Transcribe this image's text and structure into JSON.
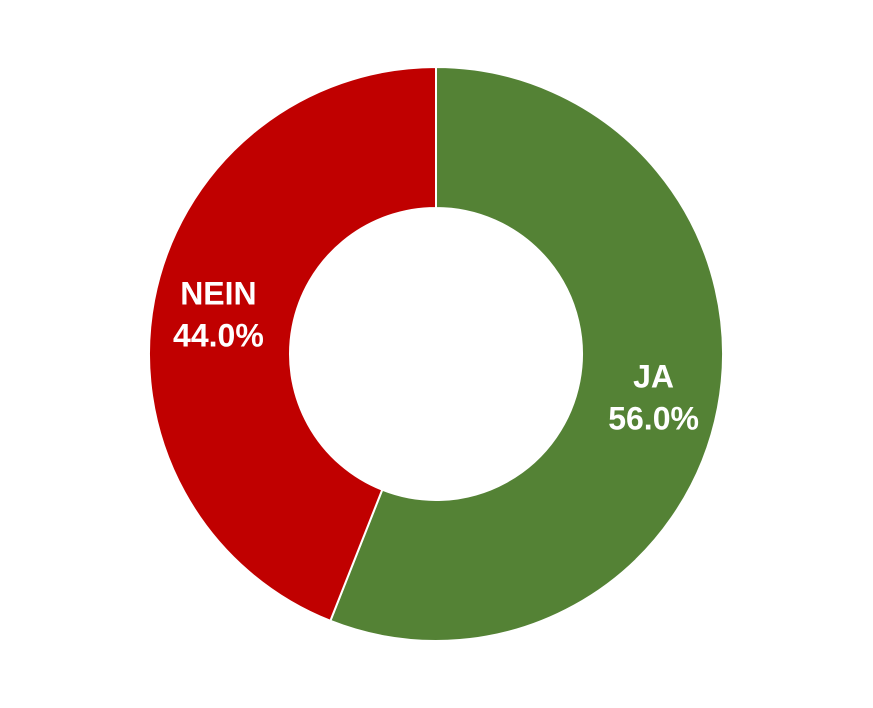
{
  "chart_data": {
    "type": "pie",
    "variant": "donut",
    "categories": [
      "JA",
      "NEIN"
    ],
    "values": [
      56.0,
      44.0
    ],
    "value_labels": [
      "56.0%",
      "44.0%"
    ],
    "colors": [
      "#548235",
      "#C00000"
    ],
    "start_angle_deg": 0,
    "direction": "clockwise",
    "title": "",
    "legend": "none"
  }
}
